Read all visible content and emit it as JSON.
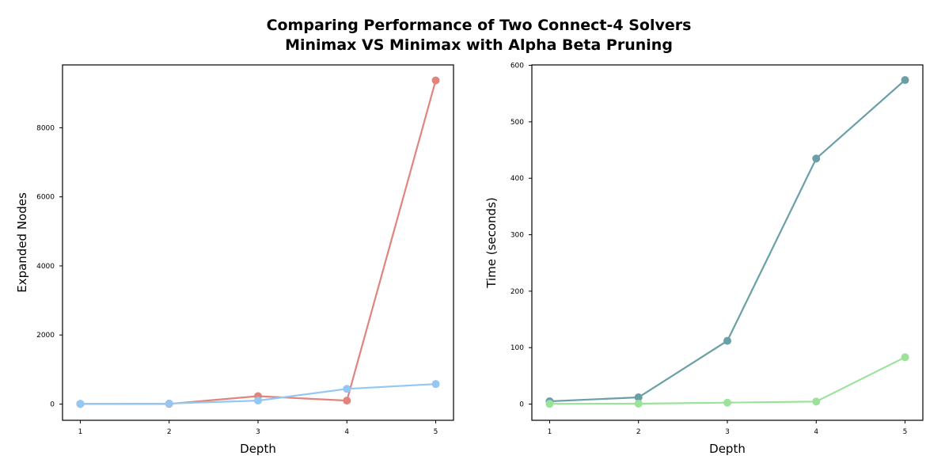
{
  "figure": {
    "title_line1": "Comparing Performance of Two Connect-4 Solvers",
    "title_line2": "Minimax VS Minimax with Alpha Beta Pruning"
  },
  "chart_data": [
    {
      "type": "line",
      "xlabel": "Depth",
      "ylabel": "Expanded Nodes",
      "x": [
        1,
        2,
        3,
        4,
        5
      ],
      "xlim": [
        0.8,
        5.2
      ],
      "ylim": [
        -470,
        9820
      ],
      "yticks": [
        0,
        2000,
        4000,
        6000,
        8000
      ],
      "grid": false,
      "series": [
        {
          "values": [
            4,
            5,
            228,
            100,
            9370
          ],
          "color": "#e0847e"
        },
        {
          "values": [
            7,
            16,
            100,
            440,
            580
          ],
          "color": "#94c8f2"
        }
      ]
    },
    {
      "type": "line",
      "xlabel": "Depth",
      "ylabel": "Time (seconds)",
      "x": [
        1,
        2,
        3,
        4,
        5
      ],
      "xlim": [
        0.8,
        5.2
      ],
      "ylim": [
        -28.7,
        600.8
      ],
      "yticks": [
        0,
        100,
        200,
        300,
        400,
        500,
        600
      ],
      "grid": false,
      "series": [
        {
          "values": [
            5,
            12,
            112,
            435,
            574
          ],
          "color": "#6aa0a5"
        },
        {
          "values": [
            0.5,
            0.8,
            2.5,
            4.5,
            83
          ],
          "color": "#9be39a"
        }
      ]
    }
  ]
}
